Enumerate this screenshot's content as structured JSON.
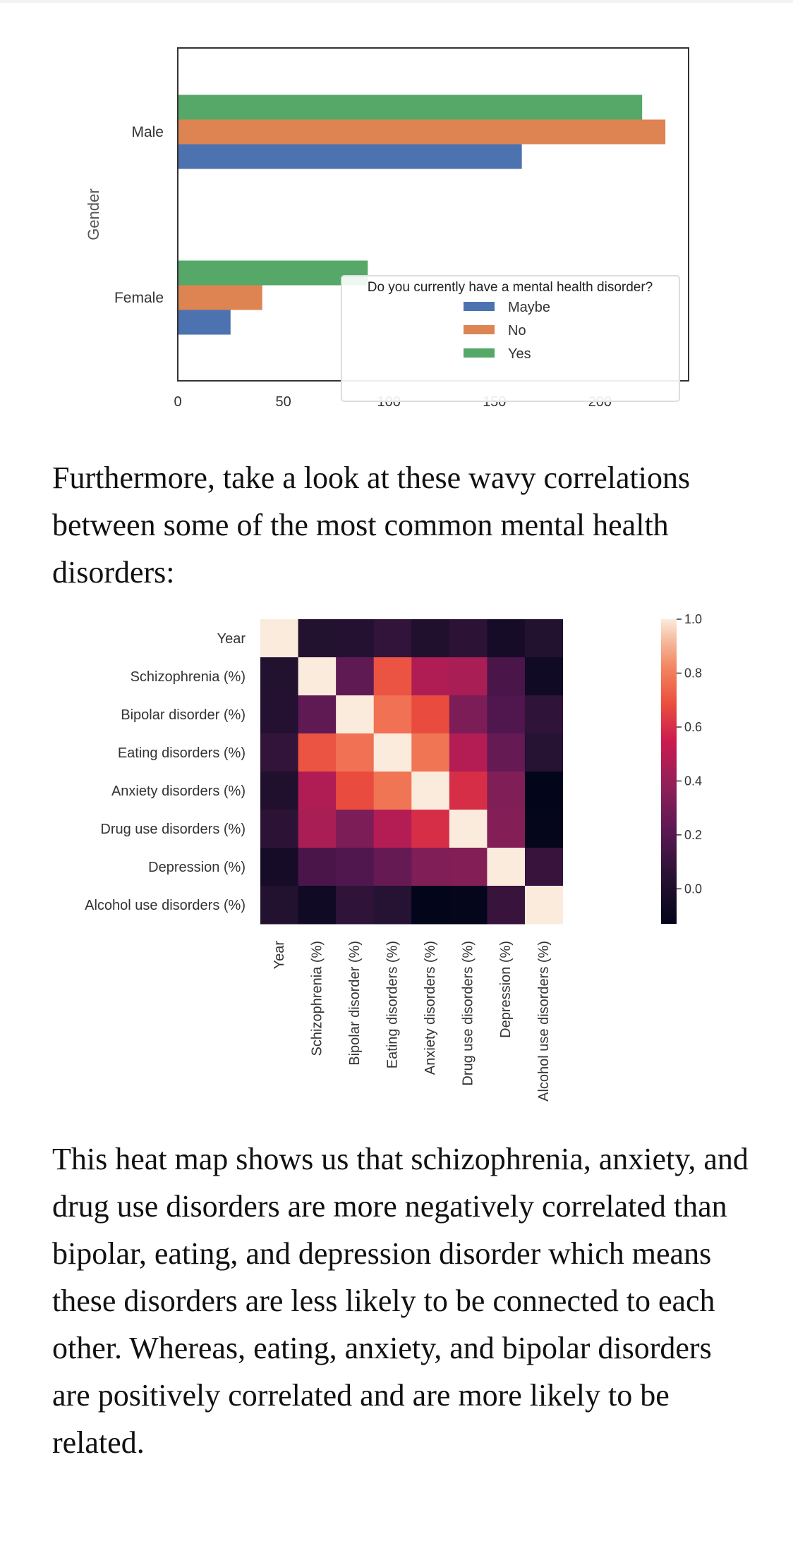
{
  "colors": {
    "maybe": "#4c72b0",
    "no": "#dd8452",
    "yes": "#55a868",
    "text": "#111111"
  },
  "paragraphs": {
    "p1": "Furthermore, take a look at these wavy correlations between some of the most common mental health disorders:",
    "p2": "This heat map shows us that schizophrenia, anxiety, and drug use disorders are more negatively correlated than bipolar, eating, and depression disorder which means these disorders are less likely to be connected to each other. Whereas, eating, anxiety, and bipolar disorders are positively correlated and are more likely to be related."
  },
  "chart_data": [
    {
      "type": "bar",
      "orientation": "horizontal",
      "title": "",
      "ylabel": "Gender",
      "xlabel": "",
      "categories": [
        "Male",
        "Female"
      ],
      "xlim": [
        0,
        242
      ],
      "xticks": [
        0,
        50,
        100,
        150,
        200
      ],
      "legend": {
        "title": "Do you currently have a mental health disorder?",
        "placement": "lower-right"
      },
      "series": [
        {
          "name": "Maybe",
          "values": [
            163,
            25
          ]
        },
        {
          "name": "No",
          "values": [
            231,
            40
          ]
        },
        {
          "name": "Yes",
          "values": [
            220,
            90
          ]
        }
      ]
    },
    {
      "type": "heatmap",
      "title": "",
      "labels": [
        "Year",
        "Schizophrenia (%)",
        "Bipolar disorder (%)",
        "Eating disorders (%)",
        "Anxiety disorders (%)",
        "Drug use disorders (%)",
        "Depression (%)",
        "Alcohol use disorders (%)"
      ],
      "matrix": [
        [
          1.0,
          0.02,
          0.03,
          0.08,
          0.01,
          0.06,
          -0.04,
          0.02
        ],
        [
          0.02,
          1.0,
          0.23,
          0.7,
          0.47,
          0.45,
          0.16,
          -0.06
        ],
        [
          0.03,
          0.23,
          1.0,
          0.77,
          0.68,
          0.32,
          0.18,
          0.07
        ],
        [
          0.08,
          0.7,
          0.77,
          1.0,
          0.78,
          0.48,
          0.25,
          0.04
        ],
        [
          0.01,
          0.47,
          0.68,
          0.78,
          1.0,
          0.6,
          0.33,
          -0.13
        ],
        [
          0.06,
          0.45,
          0.32,
          0.48,
          0.6,
          1.0,
          0.34,
          -0.12
        ],
        [
          -0.04,
          0.16,
          0.18,
          0.25,
          0.33,
          0.34,
          1.0,
          0.1
        ],
        [
          0.02,
          -0.06,
          0.07,
          0.04,
          -0.13,
          -0.12,
          0.1,
          1.0
        ]
      ],
      "vmin": -0.13,
      "vmax": 1.0,
      "colorbar_ticks": [
        1.0,
        0.8,
        0.6,
        0.4,
        0.2,
        0.0
      ],
      "colorbar_tick_labels": [
        "1.0",
        "0.8",
        "0.6",
        "0.4",
        "0.2",
        "0.0"
      ],
      "colormap": "rocket"
    }
  ]
}
